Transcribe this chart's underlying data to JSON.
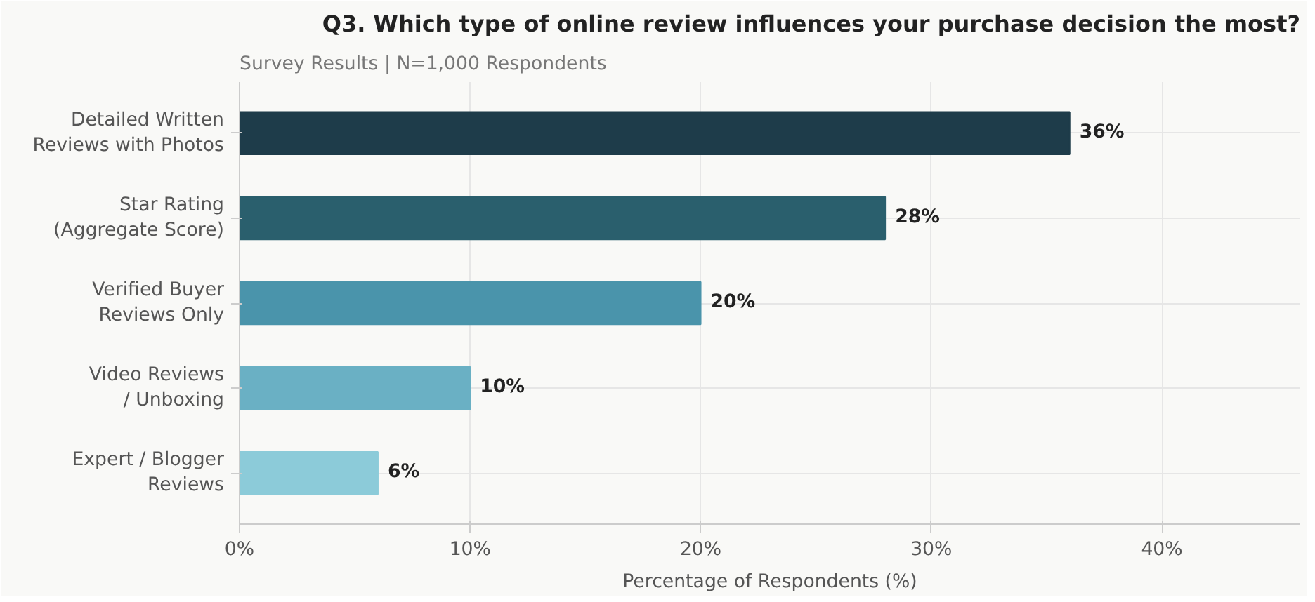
{
  "chart_data": {
    "type": "bar",
    "orientation": "horizontal",
    "title": "Q3. Which type of online review influences your purchase decision the most?",
    "subtitle": "Survey Results | N=1,000 Respondents",
    "xlabel": "Percentage of Respondents (%)",
    "categories": [
      "Detailed Written\nReviews with Photos",
      "Star Rating\n(Aggregate Score)",
      "Verified Buyer\nReviews Only",
      "Video Reviews\n/ Unboxing",
      "Expert / Blogger\nReviews"
    ],
    "values": [
      36,
      28,
      20,
      10,
      6
    ],
    "colors": [
      "#1e3c4a",
      "#2a5f6d",
      "#4a94ab",
      "#6ab0c4",
      "#8ccbd9"
    ],
    "value_labels": [
      "36%",
      "28%",
      "20%",
      "10%",
      "6%"
    ],
    "xlim": [
      0,
      46
    ],
    "xticks": [
      {
        "value": 0,
        "label": "0%"
      },
      {
        "value": 10,
        "label": "10%"
      },
      {
        "value": 20,
        "label": "20%"
      },
      {
        "value": 30,
        "label": "30%"
      },
      {
        "value": 40,
        "label": "40%"
      }
    ],
    "grid": true
  }
}
